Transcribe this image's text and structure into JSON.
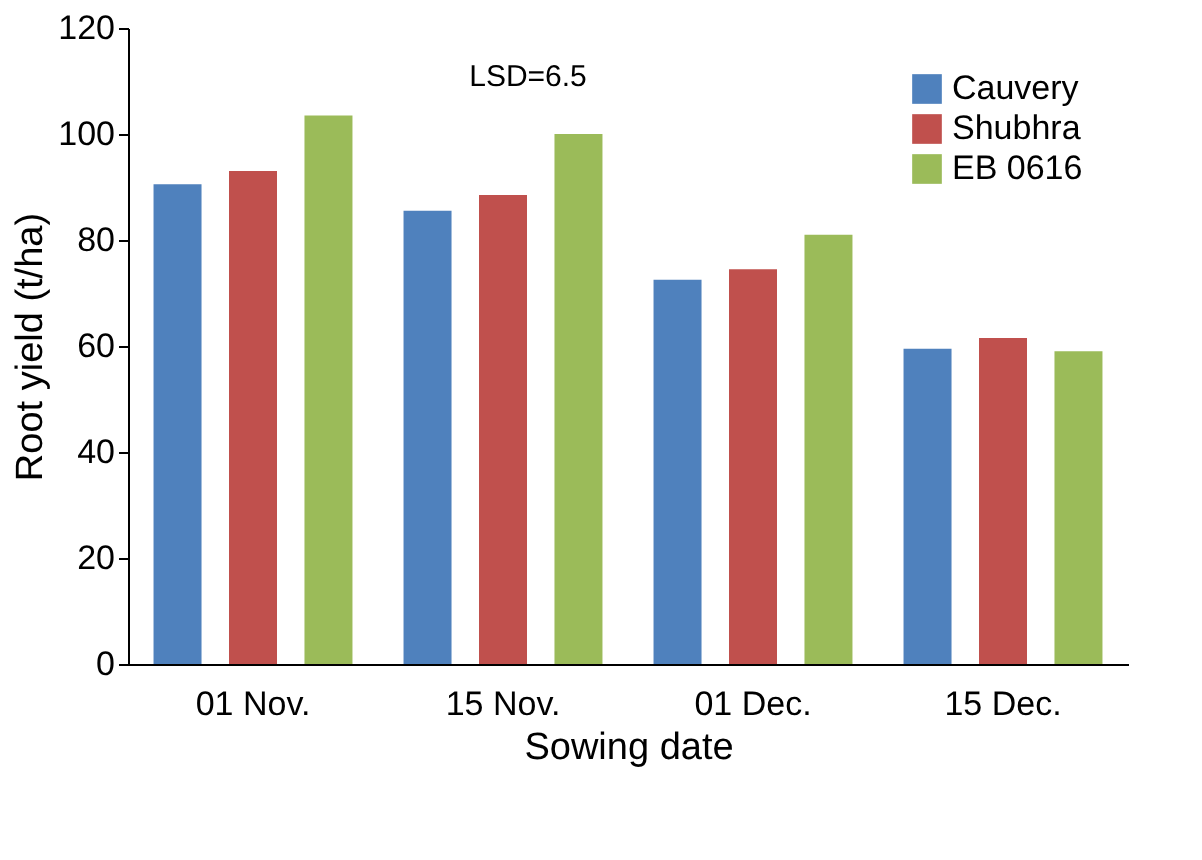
{
  "chart_data": {
    "type": "bar",
    "xlabel": "Sowing date",
    "ylabel": "Root yield (t/ha)",
    "categories": [
      "01 Nov.",
      "15 Nov.",
      "01 Dec.",
      "15 Dec."
    ],
    "series": [
      {
        "name": "Cauvery",
        "color": "#4f81bd",
        "values": [
          90.5,
          85.5,
          72.5,
          59.5
        ]
      },
      {
        "name": "Shubhra",
        "color": "#c0504d",
        "values": [
          93,
          88.5,
          74.5,
          61.5
        ]
      },
      {
        "name": "EB 0616",
        "color": "#9bbb59",
        "values": [
          103.5,
          100,
          81,
          59
        ]
      }
    ],
    "ylim": [
      0,
      120
    ],
    "yticks": [
      0,
      20,
      40,
      60,
      80,
      100,
      120
    ],
    "grid": false,
    "legend": "top right",
    "annotations": [
      "LSD=6.5"
    ]
  }
}
